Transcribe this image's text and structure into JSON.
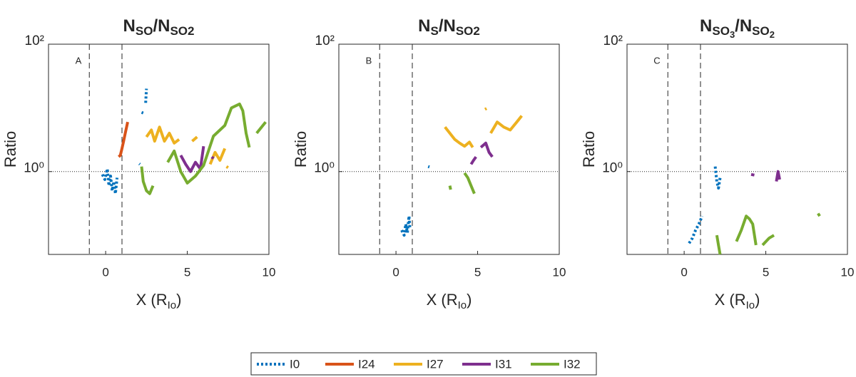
{
  "chart_data": [
    {
      "type": "line",
      "panel_label": "A",
      "title_parts": [
        {
          "text": "N",
          "level": 0
        },
        {
          "text": "SO",
          "level": 1
        },
        {
          "text": "/N",
          "level": 0
        },
        {
          "text": "SO2",
          "level": 1
        }
      ],
      "xlabel_parts": [
        {
          "text": "X (R",
          "level": 0
        },
        {
          "text": "Io",
          "level": 1
        },
        {
          "text": ")",
          "level": 0
        }
      ],
      "ylabel": "Ratio",
      "xlim": [
        -3.5,
        10
      ],
      "ylim": [
        0.05,
        100
      ],
      "yscale": "log",
      "xticks": [
        0,
        5,
        10
      ],
      "yticks": [
        {
          "value": 1,
          "label": "10⁰"
        },
        {
          "value": 100,
          "label": "10²"
        }
      ],
      "vlines": [
        -1,
        1
      ],
      "hline": 1,
      "legend": "bottom",
      "series": [
        {
          "name": "I0",
          "color": "#0072BD",
          "dash": "dotted",
          "x": [
            -0.2,
            -0.05,
            0.1,
            0.2,
            0.3,
            0.4,
            0.5,
            0.6,
            0.7,
            null,
            2.45,
            2.5,
            null,
            2.2,
            2.3,
            null,
            2.06,
            2.1
          ],
          "values": [
            0.9,
            0.75,
            1.1,
            0.6,
            0.85,
            0.5,
            0.7,
            0.45,
            0.8,
            null,
            12,
            20,
            null,
            8.5,
            8.3,
            null,
            1.33,
            1.3
          ]
        },
        {
          "name": "I24",
          "color": "#D95319",
          "dash": "solid",
          "x": [
            0.8,
            0.9,
            1.0,
            1.1,
            1.2,
            1.35
          ],
          "values": [
            1.7,
            1.8,
            2.3,
            3,
            4,
            6
          ]
        },
        {
          "name": "I27",
          "color": "#EDB120",
          "dash": "solid",
          "x": [
            2.5,
            2.8,
            3,
            3.3,
            3.6,
            3.9,
            4.2,
            4.5,
            null,
            5.3,
            5.6,
            null,
            6.4,
            6.7,
            7,
            7.3,
            null,
            7.4,
            7.5
          ],
          "values": [
            3.5,
            4.5,
            3,
            5,
            3,
            4,
            2.8,
            3.2,
            null,
            3,
            3.5,
            null,
            1.3,
            2,
            1.5,
            2.3,
            null,
            1.2,
            1.15
          ]
        },
        {
          "name": "I31",
          "color": "#7E2F8E",
          "dash": "solid",
          "x": [
            4.6,
            4.9,
            5.2,
            5.5,
            5.8,
            6.0,
            null,
            6.5,
            6.6
          ],
          "values": [
            1.8,
            1.3,
            1.0,
            1.4,
            1.1,
            2.5,
            null,
            1.7,
            1.6
          ]
        },
        {
          "name": "I32",
          "color": "#77AC30",
          "dash": "solid",
          "x": [
            2.2,
            2.3,
            2.5,
            2.7,
            2.9,
            null,
            3.8,
            4.2,
            4.6,
            5,
            5.5,
            6,
            6.6,
            7.3,
            7.7,
            8.2,
            8.4,
            8.6,
            8.8,
            null,
            9.25,
            9.8
          ],
          "values": [
            1.2,
            0.7,
            0.5,
            0.45,
            0.6,
            null,
            1.4,
            2.1,
            1,
            0.66,
            0.85,
            1.25,
            3.6,
            5.3,
            10,
            11.5,
            9,
            4,
            2.4,
            null,
            4,
            6
          ]
        }
      ]
    },
    {
      "type": "line",
      "panel_label": "B",
      "title_parts": [
        {
          "text": "N",
          "level": 0
        },
        {
          "text": "S",
          "level": 1
        },
        {
          "text": "/N",
          "level": 0
        },
        {
          "text": "SO2",
          "level": 1
        }
      ],
      "xlabel_parts": [
        {
          "text": "X (R",
          "level": 0
        },
        {
          "text": "Io",
          "level": 1
        },
        {
          "text": ")",
          "level": 0
        }
      ],
      "ylabel": "Ratio",
      "xlim": [
        -3.5,
        10
      ],
      "ylim": [
        0.05,
        100
      ],
      "yscale": "log",
      "xticks": [
        0,
        5,
        10
      ],
      "yticks": [
        {
          "value": 1,
          "label": "10⁰"
        },
        {
          "value": 100,
          "label": "10²"
        }
      ],
      "vlines": [
        -1,
        1
      ],
      "hline": 1,
      "series": [
        {
          "color": "#0072BD",
          "dash": "dotted",
          "x": [
            0.35,
            0.5,
            0.6,
            0.7,
            0.8,
            0.85,
            null,
            1.97,
            2.05
          ],
          "values": [
            0.12,
            0.1,
            0.15,
            0.11,
            0.2,
            0.13,
            null,
            1.2,
            1.18
          ]
        },
        {
          "color": "#EDB120",
          "dash": "solid",
          "x": [
            3,
            3.3,
            3.6,
            3.9,
            4.2,
            4.5,
            4.7,
            null,
            5.8,
            6.2,
            6.6,
            7,
            7.4,
            7.7,
            null,
            5.45,
            5.55
          ],
          "values": [
            5,
            4,
            3.2,
            2.8,
            2.5,
            2.9,
            2.4,
            null,
            4,
            6,
            5,
            4.5,
            6,
            7.5,
            null,
            9.5,
            9.8
          ]
        },
        {
          "color": "#7E2F8E",
          "dash": "solid",
          "x": [
            4.6,
            4.75,
            4.9,
            null,
            5.2,
            5.5,
            5.7,
            5.9
          ],
          "values": [
            1.3,
            1.5,
            1.7,
            null,
            2.4,
            2.8,
            2.0,
            1.7
          ]
        },
        {
          "color": "#77AC30",
          "dash": "solid",
          "x": [
            3.3,
            3.35,
            null,
            4.2,
            4.4,
            4.6,
            4.8
          ],
          "values": [
            0.6,
            0.52,
            null,
            0.95,
            0.8,
            0.6,
            0.45
          ]
        }
      ]
    },
    {
      "type": "line",
      "panel_label": "C",
      "title_parts": [
        {
          "text": "N",
          "level": 0
        },
        {
          "text": "SO",
          "level": 1
        },
        {
          "text": "3",
          "level": 2
        },
        {
          "text": "/N",
          "level": 0
        },
        {
          "text": "SO",
          "level": 1
        },
        {
          "text": "2",
          "level": 2
        }
      ],
      "xlabel_parts": [
        {
          "text": "X (R",
          "level": 0
        },
        {
          "text": "Io",
          "level": 1
        },
        {
          "text": ")",
          "level": 0
        }
      ],
      "ylabel": "Ratio",
      "xlim": [
        -3.5,
        10
      ],
      "ylim": [
        0.05,
        100
      ],
      "yscale": "log",
      "xticks": [
        0,
        5,
        10
      ],
      "yticks": [
        {
          "value": 1,
          "label": "10⁰"
        },
        {
          "value": 100,
          "label": "10²"
        }
      ],
      "vlines": [
        -1,
        1
      ],
      "hline": 1,
      "series": [
        {
          "color": "#0072BD",
          "dash": "dotted",
          "x": [
            1.9,
            2.0,
            2.1,
            2.2,
            null,
            0.3,
            0.5,
            0.7,
            0.9,
            1.1
          ],
          "values": [
            1.2,
            0.7,
            0.55,
            0.8,
            null,
            0.075,
            0.09,
            0.12,
            0.15,
            0.2
          ]
        },
        {
          "color": "#7E2F8E",
          "dash": "solid",
          "x": [
            4.1,
            4.3,
            null,
            5.65,
            5.75,
            5.85
          ],
          "values": [
            0.9,
            0.88,
            null,
            0.7,
            1.0,
            0.75
          ]
        },
        {
          "color": "#77AC30",
          "dash": "solid",
          "x": [
            2.0,
            2.1,
            2.2,
            null,
            3.2,
            3.5,
            3.8,
            4.0,
            4.2,
            4.4,
            null,
            4.8,
            5.2,
            5.5,
            null,
            8.2,
            8.3
          ],
          "values": [
            0.1,
            0.07,
            0.05,
            null,
            0.08,
            0.12,
            0.2,
            0.18,
            0.15,
            0.07,
            null,
            0.07,
            0.09,
            0.1,
            null,
            0.22,
            0.2
          ]
        }
      ]
    }
  ]
}
